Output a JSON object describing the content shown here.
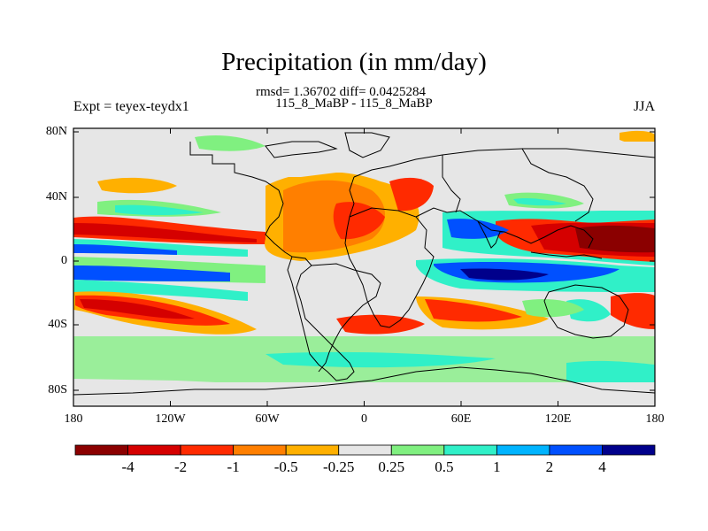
{
  "title": "Precipitation (in mm/day)",
  "stats_line": "rmsd= 1.36702 diff= 0.0425284",
  "case_line": "115_8_MaBP - 115_8_MaBP",
  "experiment_label": "Expt = teyex-teydx1",
  "season_label": "JJA",
  "lat_ticks": [
    "80N",
    "40N",
    "0",
    "40S",
    "80S"
  ],
  "lon_ticks": [
    "180",
    "120W",
    "60W",
    "0",
    "60E",
    "120E",
    "180"
  ],
  "colorbar": {
    "labels": [
      "-4",
      "-2",
      "-1",
      "-0.5",
      "-0.25",
      "0.25",
      "0.5",
      "1",
      "2",
      "4"
    ],
    "colors": [
      "#8b0000",
      "#d50000",
      "#ff2a00",
      "#ff7f00",
      "#ffb000",
      "#e6e6e6",
      "#80f080",
      "#30f0c8",
      "#00b4ff",
      "#0050ff",
      "#00008b"
    ]
  }
}
